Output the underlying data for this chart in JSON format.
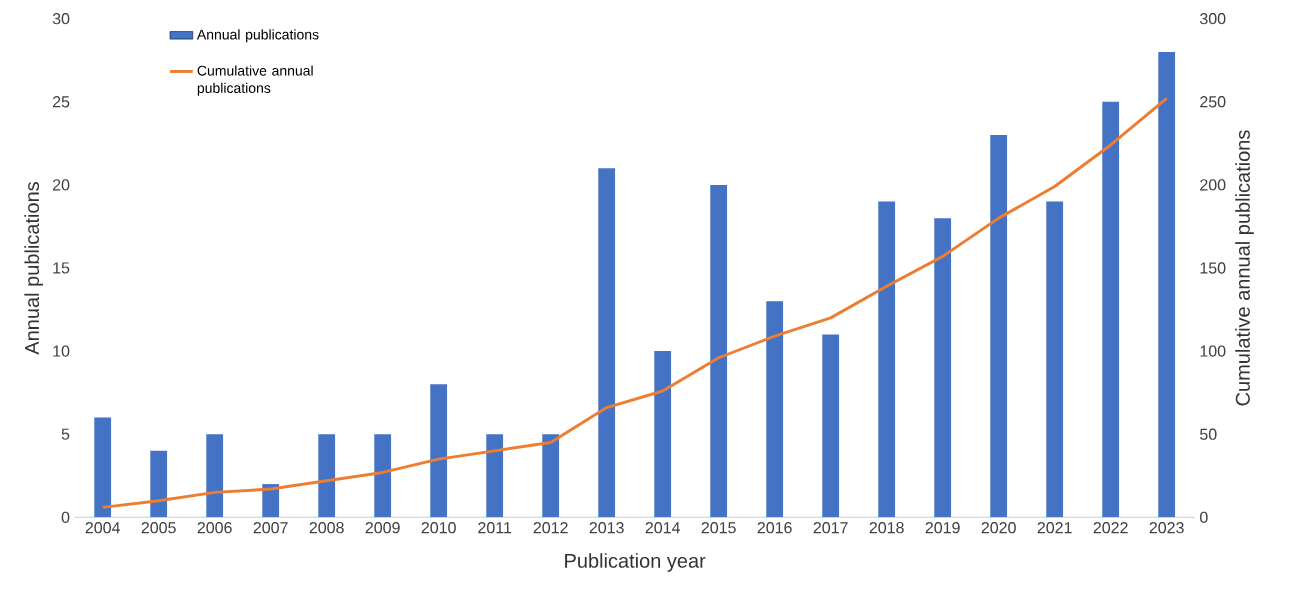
{
  "chart_data": {
    "type": "bar",
    "categories": [
      "2004",
      "2005",
      "2006",
      "2007",
      "2008",
      "2009",
      "2010",
      "2011",
      "2012",
      "2013",
      "2014",
      "2015",
      "2016",
      "2017",
      "2018",
      "2019",
      "2020",
      "2021",
      "2022",
      "2023"
    ],
    "xlabel": "Publication year",
    "ylabel": "Annual publications",
    "y2label": "Cumulative annual publications",
    "ylim": [
      0,
      30
    ],
    "yticks": [
      0,
      5,
      10,
      15,
      20,
      25,
      30
    ],
    "y2lim": [
      0,
      300
    ],
    "y2ticks": [
      0,
      50,
      100,
      150,
      200,
      250,
      300
    ],
    "legend": "top left",
    "grid": false,
    "marker": "none",
    "series": [
      {
        "name": "Annual publications",
        "color": "#4472c4",
        "values": [
          6,
          4,
          5,
          2,
          5,
          5,
          8,
          5,
          5,
          21,
          10,
          20,
          13,
          11,
          19,
          18,
          23,
          19,
          25,
          28
        ]
      },
      {
        "name": "Cumulative annual publications",
        "type": "line",
        "axis": "y2",
        "color": "#ed7d31",
        "values": [
          6,
          10,
          15,
          17,
          22,
          27,
          35,
          40,
          45,
          66,
          76,
          96,
          109,
          120,
          139,
          157,
          180,
          199,
          224,
          252
        ]
      }
    ]
  }
}
